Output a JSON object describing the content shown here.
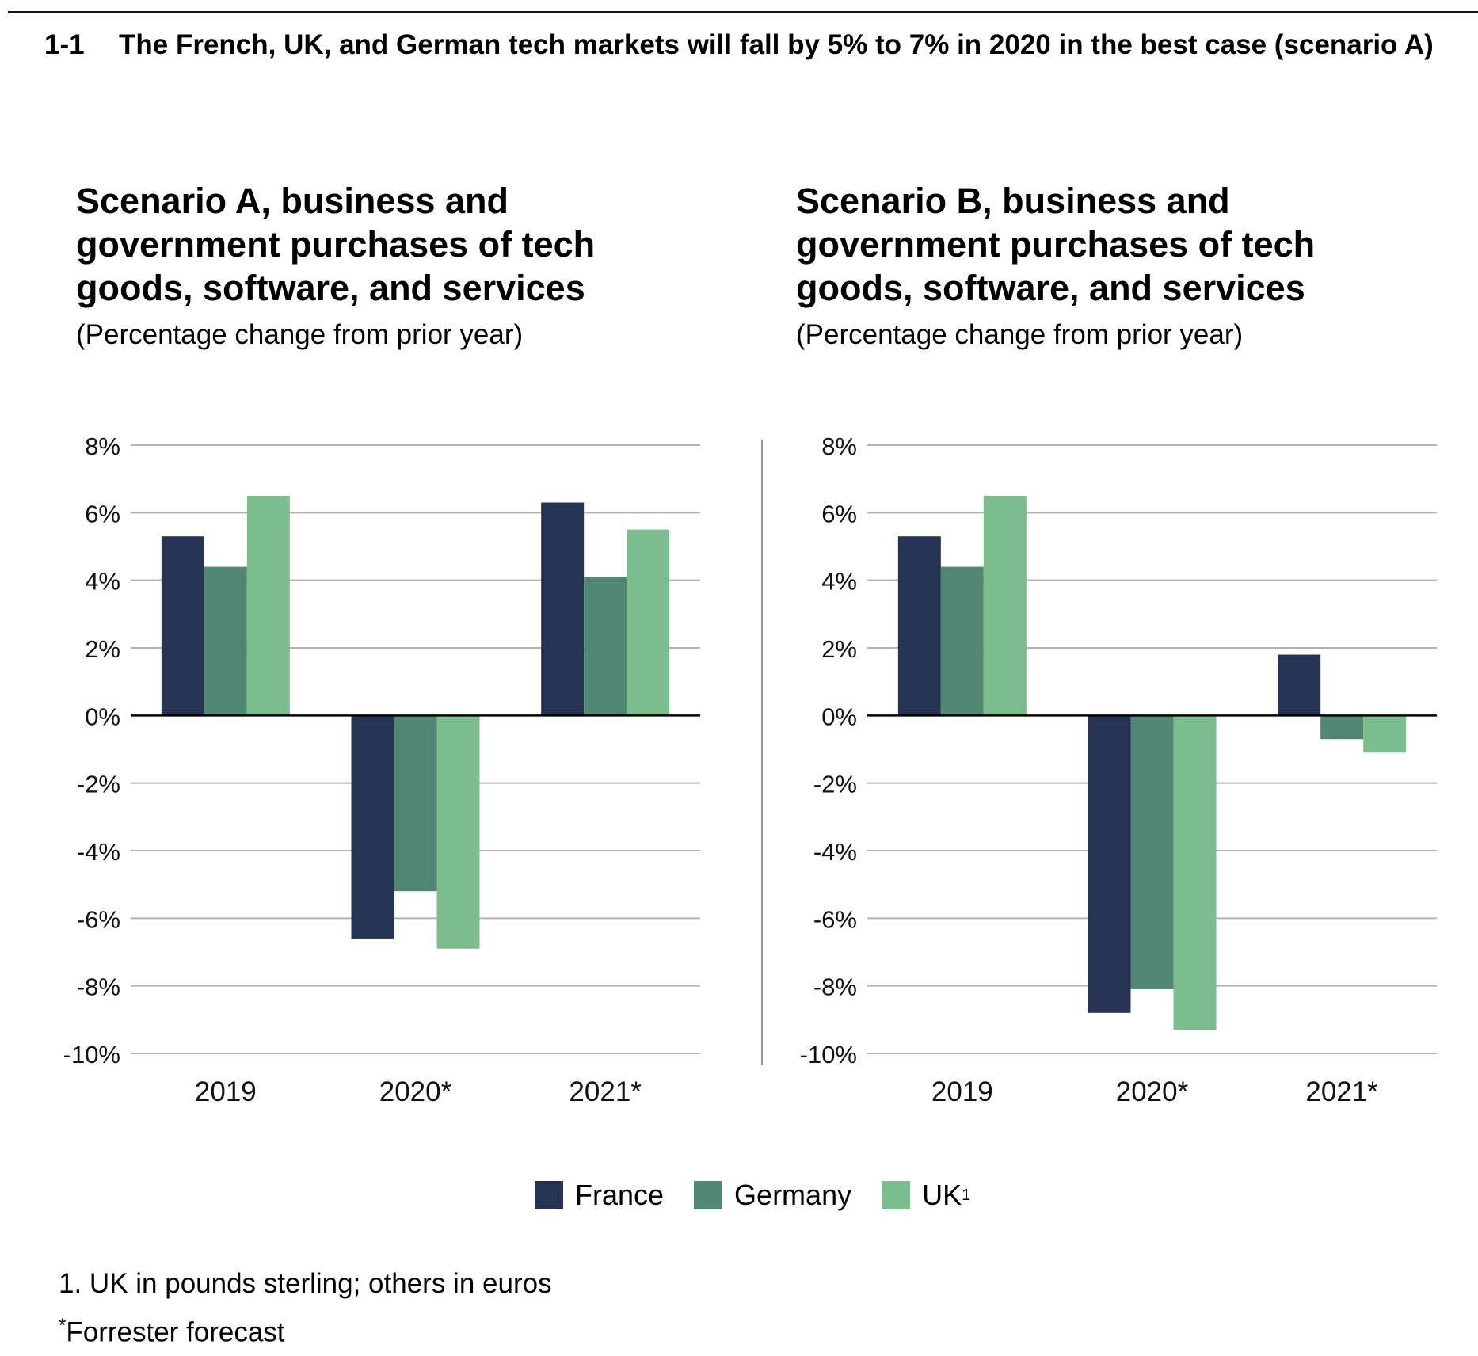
{
  "figure": {
    "number": "1-1",
    "title": "The French, UK, and German tech markets will fall by 5% to 7% in 2020 in the best case (scenario A)"
  },
  "colors": {
    "france": "#263354",
    "germany": "#528873",
    "uk": "#7bbd8d",
    "grid": "#b3b3b3",
    "axis": "#000000"
  },
  "legend": [
    {
      "label": "France",
      "sup": "",
      "color": "#263354"
    },
    {
      "label": "Germany",
      "sup": "",
      "color": "#528873"
    },
    {
      "label": "UK",
      "sup": "1",
      "color": "#7bbd8d"
    }
  ],
  "footnotes": {
    "note1": "1. UK in pounds sterling; others in euros",
    "note2_mark": "*",
    "note2_text": "Forrester forecast"
  },
  "chart_data": [
    {
      "type": "bar",
      "title": "Scenario A, business and government purchases of tech goods, software, and services",
      "subtitle": "(Percentage change from prior year)",
      "categories": [
        "2019",
        "2020*",
        "2021*"
      ],
      "series": [
        {
          "name": "France",
          "values": [
            5.3,
            -6.6,
            6.3
          ]
        },
        {
          "name": "Germany",
          "values": [
            4.4,
            -5.2,
            4.1
          ]
        },
        {
          "name": "UK",
          "values": [
            6.5,
            -6.9,
            5.5
          ]
        }
      ],
      "ylim": [
        -10,
        8
      ],
      "yticks": [
        8,
        6,
        4,
        2,
        0,
        -2,
        -4,
        -6,
        -8,
        -10
      ],
      "ytick_labels": [
        "8%",
        "6%",
        "4%",
        "2%",
        "0%",
        "-2%",
        "-4%",
        "-6%",
        "-8%",
        "-10%"
      ],
      "grid": true
    },
    {
      "type": "bar",
      "title": "Scenario B, business and government purchases of tech goods, software, and services",
      "subtitle": "(Percentage change from prior year)",
      "categories": [
        "2019",
        "2020*",
        "2021*"
      ],
      "series": [
        {
          "name": "France",
          "values": [
            5.3,
            -8.8,
            1.8
          ]
        },
        {
          "name": "Germany",
          "values": [
            4.4,
            -8.1,
            -0.7
          ]
        },
        {
          "name": "UK",
          "values": [
            6.5,
            -9.3,
            -1.1
          ]
        }
      ],
      "ylim": [
        -10,
        8
      ],
      "yticks": [
        8,
        6,
        4,
        2,
        0,
        -2,
        -4,
        -6,
        -8,
        -10
      ],
      "ytick_labels": [
        "8%",
        "6%",
        "4%",
        "2%",
        "0%",
        "-2%",
        "-4%",
        "-6%",
        "-8%",
        "-10%"
      ],
      "grid": true
    }
  ]
}
